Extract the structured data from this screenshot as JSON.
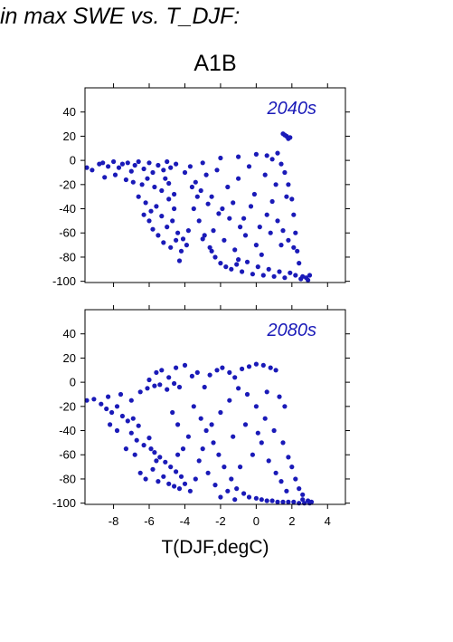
{
  "page": {
    "title": "in max SWE vs. T_DJF:"
  },
  "chart_data": {
    "type": "scatter",
    "title": "A1B",
    "xlabel": "T(DJF,degC)",
    "ylabel": "",
    "xlim": [
      -9.6,
      5.0
    ],
    "ylim": [
      -101,
      60
    ],
    "x_ticks": [
      -8,
      -6,
      -4,
      -2,
      0,
      2,
      4
    ],
    "y_ticks": [
      40,
      20,
      0,
      -20,
      -40,
      -60,
      -80,
      -100
    ],
    "grid": false,
    "point_color": "#1a1ab8",
    "panels": [
      {
        "label": "2040s",
        "points": [
          [
            -9.5,
            -6
          ],
          [
            -9.2,
            -8
          ],
          [
            -8.8,
            -3
          ],
          [
            -8.6,
            -2
          ],
          [
            -8.3,
            -5
          ],
          [
            -8.0,
            -1
          ],
          [
            -7.7,
            -6
          ],
          [
            -7.5,
            -3
          ],
          [
            -7.2,
            -2
          ],
          [
            -7.0,
            -9
          ],
          [
            -6.8,
            -4
          ],
          [
            -6.6,
            -1
          ],
          [
            -6.3,
            -7
          ],
          [
            -6.0,
            -2
          ],
          [
            -5.8,
            -10
          ],
          [
            -5.5,
            -4
          ],
          [
            -5.2,
            -8
          ],
          [
            -5.0,
            -1
          ],
          [
            -4.8,
            -6
          ],
          [
            -4.5,
            -3
          ],
          [
            -8.5,
            -14
          ],
          [
            -7.9,
            -12
          ],
          [
            -7.3,
            -16
          ],
          [
            -6.9,
            -18
          ],
          [
            -6.4,
            -20
          ],
          [
            -6.1,
            -15
          ],
          [
            -5.7,
            -22
          ],
          [
            -5.3,
            -25
          ],
          [
            -4.9,
            -19
          ],
          [
            -4.6,
            -28
          ],
          [
            -6.6,
            -30
          ],
          [
            -6.2,
            -35
          ],
          [
            -5.9,
            -42
          ],
          [
            -5.6,
            -38
          ],
          [
            -5.3,
            -46
          ],
          [
            -5.0,
            -55
          ],
          [
            -4.7,
            -50
          ],
          [
            -4.4,
            -60
          ],
          [
            -4.1,
            -65
          ],
          [
            -3.8,
            -58
          ],
          [
            -5.5,
            -62
          ],
          [
            -5.2,
            -68
          ],
          [
            -4.8,
            -72
          ],
          [
            -4.5,
            -66
          ],
          [
            -4.2,
            -75
          ],
          [
            -3.9,
            -70
          ],
          [
            -4.3,
            -83
          ],
          [
            -6.0,
            -50
          ],
          [
            -5.8,
            -57
          ],
          [
            -6.3,
            -45
          ],
          [
            -4.0,
            -10
          ],
          [
            -3.7,
            -5
          ],
          [
            -3.4,
            -18
          ],
          [
            -3.1,
            -25
          ],
          [
            -2.8,
            -12
          ],
          [
            -2.5,
            -30
          ],
          [
            -2.2,
            -8
          ],
          [
            -1.9,
            -40
          ],
          [
            -1.6,
            -22
          ],
          [
            -1.3,
            -35
          ],
          [
            -1.0,
            -15
          ],
          [
            -0.7,
            -48
          ],
          [
            -0.4,
            -5
          ],
          [
            -0.1,
            -28
          ],
          [
            0.2,
            -55
          ],
          [
            0.5,
            -12
          ],
          [
            0.8,
            -60
          ],
          [
            1.1,
            -20
          ],
          [
            1.4,
            -70
          ],
          [
            1.7,
            -30
          ],
          [
            -3.5,
            -40
          ],
          [
            -3.2,
            -50
          ],
          [
            -2.9,
            -62
          ],
          [
            -2.6,
            -72
          ],
          [
            -2.3,
            -80
          ],
          [
            -2.0,
            -85
          ],
          [
            -1.7,
            -88
          ],
          [
            -1.4,
            -90
          ],
          [
            -1.1,
            -86
          ],
          [
            -0.8,
            -92
          ],
          [
            -0.5,
            -84
          ],
          [
            -0.2,
            -94
          ],
          [
            0.1,
            -88
          ],
          [
            0.4,
            -95
          ],
          [
            0.7,
            -90
          ],
          [
            1.0,
            -96
          ],
          [
            1.3,
            -92
          ],
          [
            1.6,
            -97
          ],
          [
            1.9,
            -93
          ],
          [
            2.2,
            -95
          ],
          [
            2.5,
            -98
          ],
          [
            2.8,
            -97
          ],
          [
            3.0,
            -95
          ],
          [
            2.6,
            -96
          ],
          [
            2.9,
            -99
          ],
          [
            -3.0,
            -2
          ],
          [
            -2.0,
            2
          ],
          [
            -1.0,
            3
          ],
          [
            0.0,
            5
          ],
          [
            0.6,
            4
          ],
          [
            1.2,
            6
          ],
          [
            0.9,
            1
          ],
          [
            1.4,
            -3
          ],
          [
            1.6,
            -10
          ],
          [
            1.8,
            -20
          ],
          [
            2.0,
            -32
          ],
          [
            2.1,
            -45
          ],
          [
            2.2,
            -60
          ],
          [
            2.3,
            -75
          ],
          [
            2.4,
            -85
          ],
          [
            1.5,
            22
          ],
          [
            1.7,
            20
          ],
          [
            1.9,
            19
          ],
          [
            1.6,
            21
          ],
          [
            1.8,
            18
          ],
          [
            -2.4,
            -58
          ],
          [
            -1.8,
            -66
          ],
          [
            -1.2,
            -74
          ],
          [
            -0.6,
            -62
          ],
          [
            0.0,
            -70
          ],
          [
            0.3,
            -78
          ],
          [
            0.6,
            -45
          ],
          [
            -0.9,
            -55
          ],
          [
            -1.5,
            -48
          ],
          [
            -2.1,
            -44
          ],
          [
            -2.7,
            -36
          ],
          [
            -3.3,
            -30
          ],
          [
            -3.6,
            -22
          ],
          [
            -0.3,
            -38
          ],
          [
            0.9,
            -34
          ],
          [
            1.2,
            -50
          ],
          [
            1.5,
            -58
          ],
          [
            1.8,
            -66
          ],
          [
            2.1,
            -72
          ],
          [
            -4.6,
            -40
          ],
          [
            -4.9,
            -32
          ],
          [
            -5.1,
            -15
          ],
          [
            -3.0,
            -65
          ],
          [
            -2.5,
            -75
          ],
          [
            -1.0,
            -82
          ]
        ]
      },
      {
        "label": "2080s",
        "points": [
          [
            -9.5,
            -15
          ],
          [
            -9.1,
            -14
          ],
          [
            -8.7,
            -18
          ],
          [
            -8.4,
            -22
          ],
          [
            -8.1,
            -25
          ],
          [
            -7.8,
            -20
          ],
          [
            -7.5,
            -28
          ],
          [
            -7.2,
            -32
          ],
          [
            -6.9,
            -30
          ],
          [
            -6.6,
            -36
          ],
          [
            -8.3,
            -12
          ],
          [
            -7.6,
            -10
          ],
          [
            -7.0,
            -15
          ],
          [
            -6.5,
            -8
          ],
          [
            -6.1,
            -5
          ],
          [
            -5.7,
            -3
          ],
          [
            -5.4,
            -2
          ],
          [
            -5.0,
            -6
          ],
          [
            -4.6,
            -1
          ],
          [
            -4.3,
            -4
          ],
          [
            -7.0,
            -42
          ],
          [
            -6.7,
            -48
          ],
          [
            -6.3,
            -52
          ],
          [
            -6.0,
            -46
          ],
          [
            -5.7,
            -58
          ],
          [
            -5.4,
            -62
          ],
          [
            -5.1,
            -66
          ],
          [
            -4.8,
            -70
          ],
          [
            -4.5,
            -74
          ],
          [
            -4.2,
            -78
          ],
          [
            -6.5,
            -75
          ],
          [
            -6.2,
            -80
          ],
          [
            -5.8,
            -72
          ],
          [
            -5.5,
            -82
          ],
          [
            -5.2,
            -78
          ],
          [
            -4.9,
            -84
          ],
          [
            -4.6,
            -86
          ],
          [
            -4.3,
            -88
          ],
          [
            -4.0,
            -84
          ],
          [
            -3.7,
            -90
          ],
          [
            -6.0,
            2
          ],
          [
            -5.6,
            8
          ],
          [
            -5.3,
            10
          ],
          [
            -4.9,
            4
          ],
          [
            -4.5,
            12
          ],
          [
            -4.0,
            14
          ],
          [
            -3.6,
            5
          ],
          [
            -3.3,
            8
          ],
          [
            -2.9,
            -4
          ],
          [
            -2.6,
            6
          ],
          [
            -2.2,
            10
          ],
          [
            -1.9,
            12
          ],
          [
            -1.5,
            8
          ],
          [
            -1.2,
            4
          ],
          [
            -0.8,
            11
          ],
          [
            -0.4,
            13
          ],
          [
            0.0,
            15
          ],
          [
            0.4,
            14
          ],
          [
            0.8,
            12
          ],
          [
            1.1,
            10
          ],
          [
            -3.5,
            -20
          ],
          [
            -3.1,
            -30
          ],
          [
            -2.8,
            -40
          ],
          [
            -2.4,
            -50
          ],
          [
            -2.1,
            -60
          ],
          [
            -1.8,
            -70
          ],
          [
            -1.4,
            -80
          ],
          [
            -1.1,
            -88
          ],
          [
            -0.7,
            -92
          ],
          [
            -0.4,
            -95
          ],
          [
            0.0,
            -96
          ],
          [
            0.3,
            -97
          ],
          [
            0.6,
            -98
          ],
          [
            0.9,
            -98
          ],
          [
            1.2,
            -99
          ],
          [
            1.5,
            -99
          ],
          [
            1.8,
            -99
          ],
          [
            2.1,
            -99
          ],
          [
            2.4,
            -100
          ],
          [
            2.7,
            -100
          ],
          [
            3.0,
            -100
          ],
          [
            3.1,
            -99
          ],
          [
            2.9,
            -98
          ],
          [
            2.6,
            -97
          ],
          [
            -3.0,
            -55
          ],
          [
            -2.5,
            -35
          ],
          [
            -2.0,
            -25
          ],
          [
            -1.5,
            -15
          ],
          [
            -1.0,
            -5
          ],
          [
            -0.5,
            -10
          ],
          [
            0.0,
            -20
          ],
          [
            0.5,
            -30
          ],
          [
            1.0,
            -40
          ],
          [
            1.5,
            -50
          ],
          [
            1.8,
            -62
          ],
          [
            2.0,
            -70
          ],
          [
            2.2,
            -80
          ],
          [
            2.4,
            -88
          ],
          [
            2.6,
            -93
          ],
          [
            -3.8,
            -45
          ],
          [
            -4.1,
            -55
          ],
          [
            -4.4,
            -35
          ],
          [
            -4.7,
            -25
          ],
          [
            -3.2,
            -65
          ],
          [
            -2.7,
            -75
          ],
          [
            -2.3,
            -85
          ],
          [
            -1.6,
            -90
          ],
          [
            -0.9,
            -70
          ],
          [
            -0.2,
            -60
          ],
          [
            0.3,
            -50
          ],
          [
            0.7,
            -65
          ],
          [
            1.1,
            -75
          ],
          [
            1.4,
            -82
          ],
          [
            1.7,
            -90
          ],
          [
            -1.3,
            -45
          ],
          [
            -0.6,
            -35
          ],
          [
            0.1,
            -42
          ],
          [
            0.6,
            -8
          ],
          [
            1.3,
            -12
          ],
          [
            1.6,
            -20
          ],
          [
            -5.9,
            -55
          ],
          [
            -5.6,
            -65
          ],
          [
            -6.8,
            -60
          ],
          [
            -7.3,
            -55
          ],
          [
            -7.8,
            -40
          ],
          [
            -8.2,
            -35
          ],
          [
            -4.4,
            -60
          ],
          [
            -3.4,
            -80
          ],
          [
            -2.0,
            -95
          ],
          [
            -1.2,
            -97
          ]
        ]
      }
    ]
  }
}
